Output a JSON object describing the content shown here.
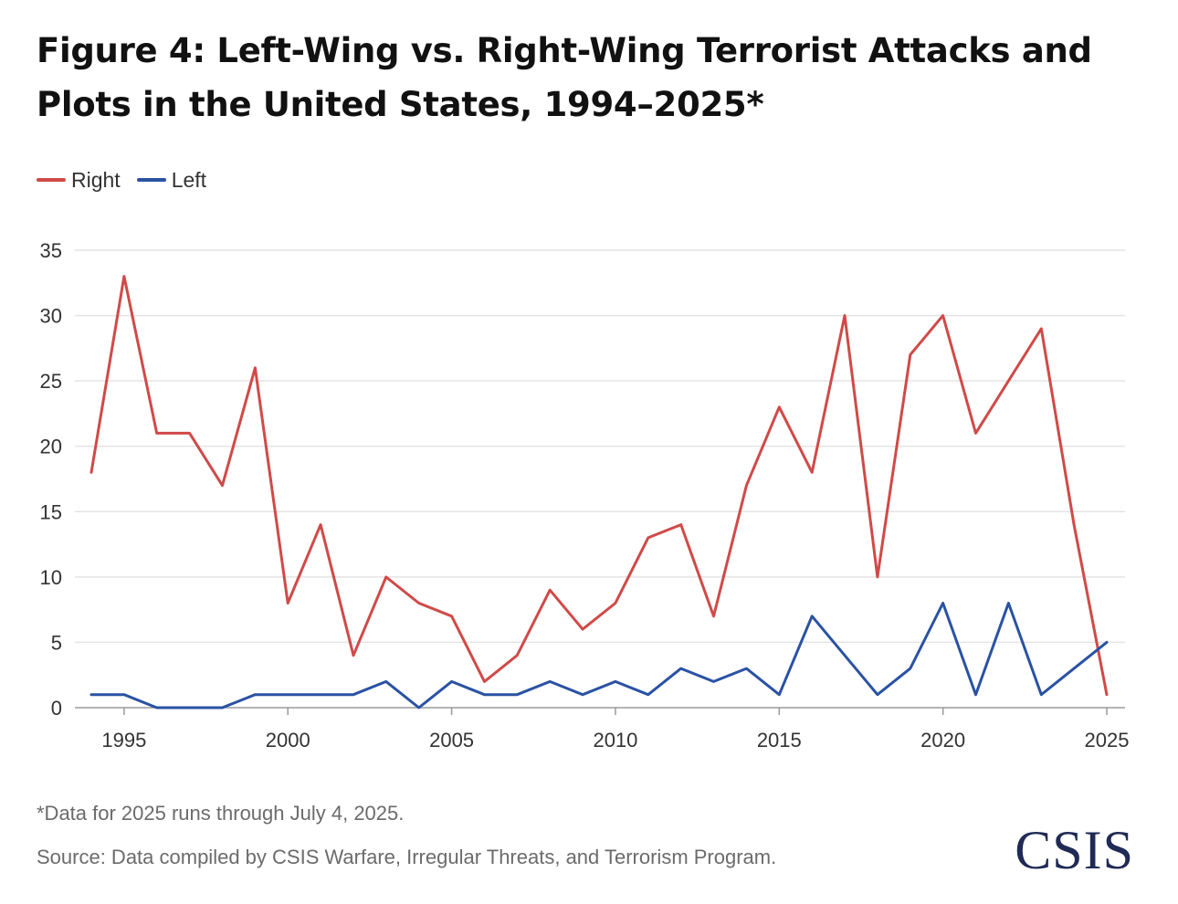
{
  "title": "Figure 4: Left-Wing vs. Right-Wing Terrorist Attacks and Plots in the United States, 1994–2025*",
  "legend": {
    "right": "Right",
    "left": "Left"
  },
  "footnote": "*Data for 2025 runs through July 4, 2025.",
  "source": "Source: Data compiled by CSIS Warfare, Irregular Threats, and Terrorism Program.",
  "logo_text": "CSIS",
  "colors": {
    "right": "#d04a48",
    "left": "#2a52a3",
    "grid": "#e4e4e4",
    "axis": "#9a9a9a",
    "logo": "#1f2a55"
  },
  "chart_data": {
    "type": "line",
    "title": "Figure 4: Left-Wing vs. Right-Wing Terrorist Attacks and Plots in the United States, 1994–2025*",
    "xlabel": "",
    "ylabel": "",
    "x": [
      1994,
      1995,
      1996,
      1997,
      1998,
      1999,
      2000,
      2001,
      2002,
      2003,
      2004,
      2005,
      2006,
      2007,
      2008,
      2009,
      2010,
      2011,
      2012,
      2013,
      2014,
      2015,
      2016,
      2017,
      2018,
      2019,
      2020,
      2021,
      2022,
      2023,
      2024,
      2025
    ],
    "series": [
      {
        "name": "Right",
        "values": [
          18,
          33,
          21,
          21,
          17,
          26,
          8,
          14,
          4,
          10,
          8,
          7,
          2,
          4,
          9,
          6,
          8,
          13,
          14,
          7,
          17,
          23,
          18,
          30,
          10,
          27,
          30,
          21,
          25,
          29,
          14,
          1
        ]
      },
      {
        "name": "Left",
        "values": [
          1,
          1,
          0,
          0,
          0,
          1,
          1,
          1,
          1,
          2,
          0,
          2,
          1,
          1,
          2,
          1,
          2,
          1,
          3,
          2,
          3,
          1,
          7,
          4,
          1,
          3,
          8,
          1,
          8,
          1,
          3,
          5
        ]
      }
    ],
    "x_ticks": [
      1995,
      2000,
      2005,
      2010,
      2015,
      2020,
      2025
    ],
    "y_ticks": [
      0,
      5,
      10,
      15,
      20,
      25,
      30,
      35
    ],
    "xlim": [
      1994,
      2025
    ],
    "ylim": [
      0,
      35
    ],
    "grid": "horizontal",
    "legend_position": "top-left"
  }
}
